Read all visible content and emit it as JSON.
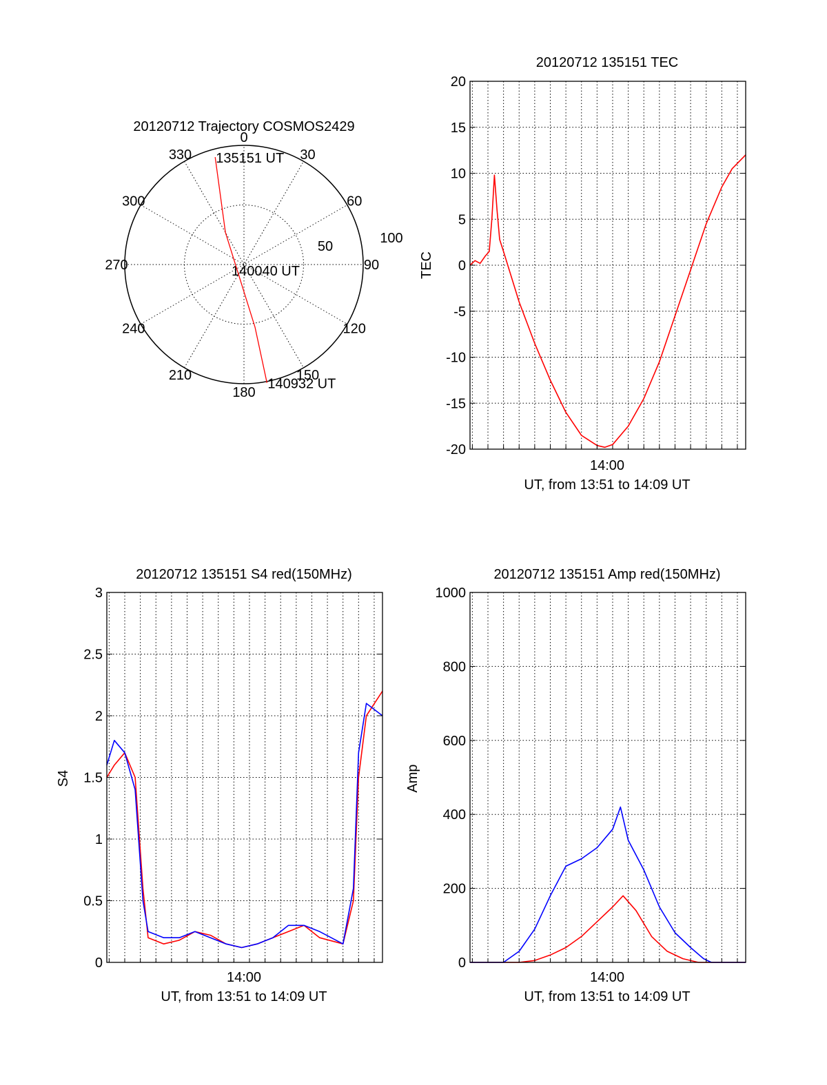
{
  "chart_data": [
    {
      "id": "trajectory",
      "type": "polar",
      "title": "20120712 Trajectory COSMOS2429",
      "azimuth_labels": [
        "0",
        "30",
        "60",
        "90",
        "120",
        "150",
        "180",
        "210",
        "240",
        "270",
        "300",
        "330"
      ],
      "radial_labels": [
        "50",
        "100"
      ],
      "grid": true,
      "series": [
        {
          "color": "#ff0000",
          "points": [
            {
              "az": 345,
              "zenith": 84,
              "label": "135151 UT"
            },
            {
              "az": 330,
              "zenith": 28
            },
            {
              "az": 170,
              "zenith": 48
            },
            {
              "az": 169,
              "zenith": 91,
              "label": "140932 UT"
            }
          ]
        }
      ],
      "center_label": "140040 UT"
    },
    {
      "id": "tec",
      "type": "line",
      "title": "20120712 135151 TEC",
      "xlabel": "UT, from 13:51 to 14:09 UT",
      "ylabel": "TEC",
      "xlim": [
        "13:51:51",
        "14:09:32"
      ],
      "ylim": [
        -20,
        20
      ],
      "yticks": [
        -20,
        -15,
        -10,
        -5,
        0,
        5,
        10,
        15,
        20
      ],
      "xticklabels": [
        "14:00"
      ],
      "grid": true,
      "series": [
        {
          "color": "#ff0000",
          "points": [
            [
              "13:51:51",
              0.0
            ],
            [
              "13:52:10",
              0.5
            ],
            [
              "13:52:30",
              0.2
            ],
            [
              "13:52:50",
              1.0
            ],
            [
              "13:53:05",
              1.5
            ],
            [
              "13:53:15",
              5.0
            ],
            [
              "13:53:25",
              9.8
            ],
            [
              "13:53:35",
              6.0
            ],
            [
              "13:53:45",
              2.8
            ],
            [
              "13:54:00",
              1.5
            ],
            [
              "13:55:00",
              -4.0
            ],
            [
              "13:56:00",
              -8.5
            ],
            [
              "13:57:00",
              -12.5
            ],
            [
              "13:58:00",
              -16.0
            ],
            [
              "13:59:00",
              -18.5
            ],
            [
              "14:00:00",
              -19.6
            ],
            [
              "14:00:30",
              -19.8
            ],
            [
              "14:01:00",
              -19.5
            ],
            [
              "14:02:00",
              -17.5
            ],
            [
              "14:03:00",
              -14.5
            ],
            [
              "14:04:00",
              -10.5
            ],
            [
              "14:05:00",
              -5.5
            ],
            [
              "14:06:00",
              -0.5
            ],
            [
              "14:07:00",
              4.5
            ],
            [
              "14:08:00",
              8.5
            ],
            [
              "14:08:40",
              10.5
            ],
            [
              "14:09:32",
              12.0
            ]
          ]
        }
      ]
    },
    {
      "id": "s4",
      "type": "line",
      "title": "20120712 135151 S4 red(150MHz)",
      "xlabel": "UT, from 13:51 to 14:09 UT",
      "ylabel": "S4",
      "xlim": [
        "13:51:51",
        "14:09:32"
      ],
      "ylim": [
        0,
        3
      ],
      "yticks": [
        0,
        0.5,
        1,
        1.5,
        2,
        2.5,
        3
      ],
      "xticklabels": [
        "14:00"
      ],
      "grid": true,
      "series": [
        {
          "color": "#ff0000",
          "points": [
            [
              "13:51:51",
              1.5
            ],
            [
              "13:52:20",
              1.6
            ],
            [
              "13:53:00",
              1.7
            ],
            [
              "13:53:40",
              1.5
            ],
            [
              "13:54:10",
              0.6
            ],
            [
              "13:54:30",
              0.2
            ],
            [
              "13:55:30",
              0.15
            ],
            [
              "13:56:30",
              0.18
            ],
            [
              "13:57:30",
              0.25
            ],
            [
              "13:58:30",
              0.22
            ],
            [
              "13:59:30",
              0.15
            ],
            [
              "14:00:30",
              0.12
            ],
            [
              "14:01:30",
              0.15
            ],
            [
              "14:02:30",
              0.2
            ],
            [
              "14:03:30",
              0.25
            ],
            [
              "14:04:30",
              0.3
            ],
            [
              "14:05:30",
              0.2
            ],
            [
              "14:07:00",
              0.15
            ],
            [
              "14:07:40",
              0.5
            ],
            [
              "14:08:00",
              1.5
            ],
            [
              "14:08:30",
              2.0
            ],
            [
              "14:09:32",
              2.2
            ]
          ]
        },
        {
          "color": "#0000ff",
          "points": [
            [
              "13:51:51",
              1.6
            ],
            [
              "13:52:20",
              1.8
            ],
            [
              "13:53:00",
              1.7
            ],
            [
              "13:53:40",
              1.4
            ],
            [
              "13:54:10",
              0.5
            ],
            [
              "13:54:30",
              0.25
            ],
            [
              "13:55:30",
              0.2
            ],
            [
              "13:56:30",
              0.2
            ],
            [
              "13:57:30",
              0.25
            ],
            [
              "13:58:30",
              0.2
            ],
            [
              "13:59:30",
              0.15
            ],
            [
              "14:00:30",
              0.12
            ],
            [
              "14:01:30",
              0.15
            ],
            [
              "14:02:30",
              0.2
            ],
            [
              "14:03:30",
              0.3
            ],
            [
              "14:04:30",
              0.3
            ],
            [
              "14:05:30",
              0.25
            ],
            [
              "14:07:00",
              0.15
            ],
            [
              "14:07:40",
              0.6
            ],
            [
              "14:08:00",
              1.7
            ],
            [
              "14:08:30",
              2.1
            ],
            [
              "14:09:32",
              2.0
            ]
          ]
        }
      ]
    },
    {
      "id": "amp",
      "type": "line",
      "title": "20120712 135151 Amp red(150MHz)",
      "xlabel": "UT, from 13:51 to 14:09 UT",
      "ylabel": "Amp",
      "xlim": [
        "13:51:51",
        "14:09:32"
      ],
      "ylim": [
        0,
        1000
      ],
      "yticks": [
        0,
        200,
        400,
        600,
        800,
        1000
      ],
      "xticklabels": [
        "14:00"
      ],
      "grid": true,
      "series": [
        {
          "color": "#ff0000",
          "points": [
            [
              "13:51:51",
              0
            ],
            [
              "13:55:00",
              0
            ],
            [
              "13:56:00",
              5
            ],
            [
              "13:57:00",
              20
            ],
            [
              "13:58:00",
              40
            ],
            [
              "13:59:00",
              70
            ],
            [
              "14:00:00",
              110
            ],
            [
              "14:01:00",
              150
            ],
            [
              "14:01:40",
              180
            ],
            [
              "14:02:30",
              140
            ],
            [
              "14:03:30",
              70
            ],
            [
              "14:04:30",
              30
            ],
            [
              "14:05:30",
              10
            ],
            [
              "14:06:30",
              0
            ],
            [
              "14:09:32",
              0
            ]
          ]
        },
        {
          "color": "#0000ff",
          "points": [
            [
              "13:51:51",
              0
            ],
            [
              "13:54:00",
              0
            ],
            [
              "13:55:00",
              30
            ],
            [
              "13:56:00",
              90
            ],
            [
              "13:57:00",
              180
            ],
            [
              "13:58:00",
              260
            ],
            [
              "13:59:00",
              280
            ],
            [
              "14:00:00",
              310
            ],
            [
              "14:01:00",
              360
            ],
            [
              "14:01:30",
              420
            ],
            [
              "14:02:00",
              330
            ],
            [
              "14:03:00",
              250
            ],
            [
              "14:04:00",
              150
            ],
            [
              "14:05:00",
              80
            ],
            [
              "14:06:00",
              40
            ],
            [
              "14:06:50",
              10
            ],
            [
              "14:07:20",
              0
            ],
            [
              "14:09:32",
              0
            ]
          ]
        }
      ]
    }
  ]
}
